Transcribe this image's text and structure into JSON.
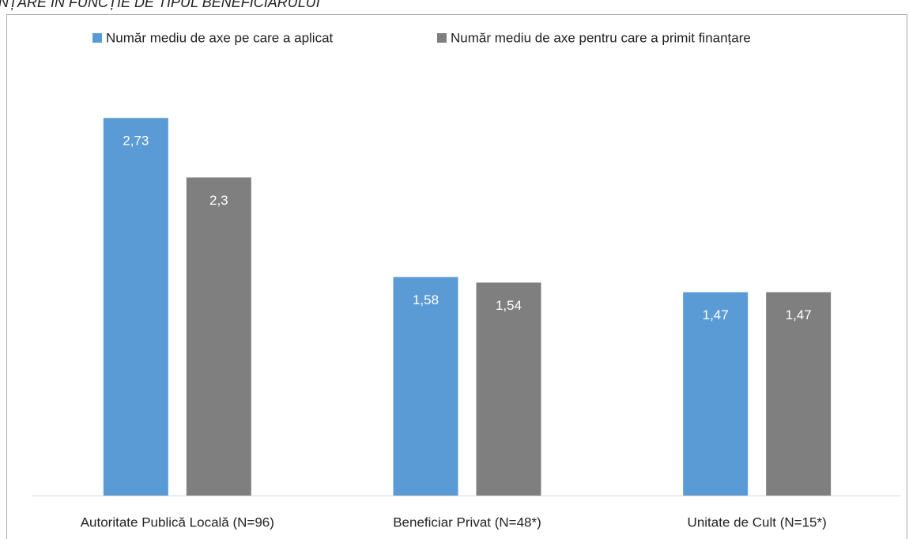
{
  "chart_data": {
    "type": "bar",
    "title": "NȚARE ÎN FUNCȚIE DE TIPUL BENEFICIARULUI",
    "categories": [
      "Autoritate Publică Locală (N=96)",
      "Beneficiar Privat (N=48*)",
      "Unitate de Cult (N=15*)"
    ],
    "series": [
      {
        "name": "Număr mediu de axe pe care a aplicat",
        "color": "#5b9bd5",
        "values": [
          2.73,
          1.58,
          1.47
        ],
        "value_labels": [
          "2,73",
          "1,58",
          "1,47"
        ]
      },
      {
        "name": "Număr mediu de axe pentru care a primit finanțare",
        "color": "#7f7f7f",
        "values": [
          2.3,
          1.54,
          1.47
        ],
        "value_labels": [
          "2,3",
          "1,54",
          "1,47"
        ]
      }
    ],
    "legend": "top"
  }
}
